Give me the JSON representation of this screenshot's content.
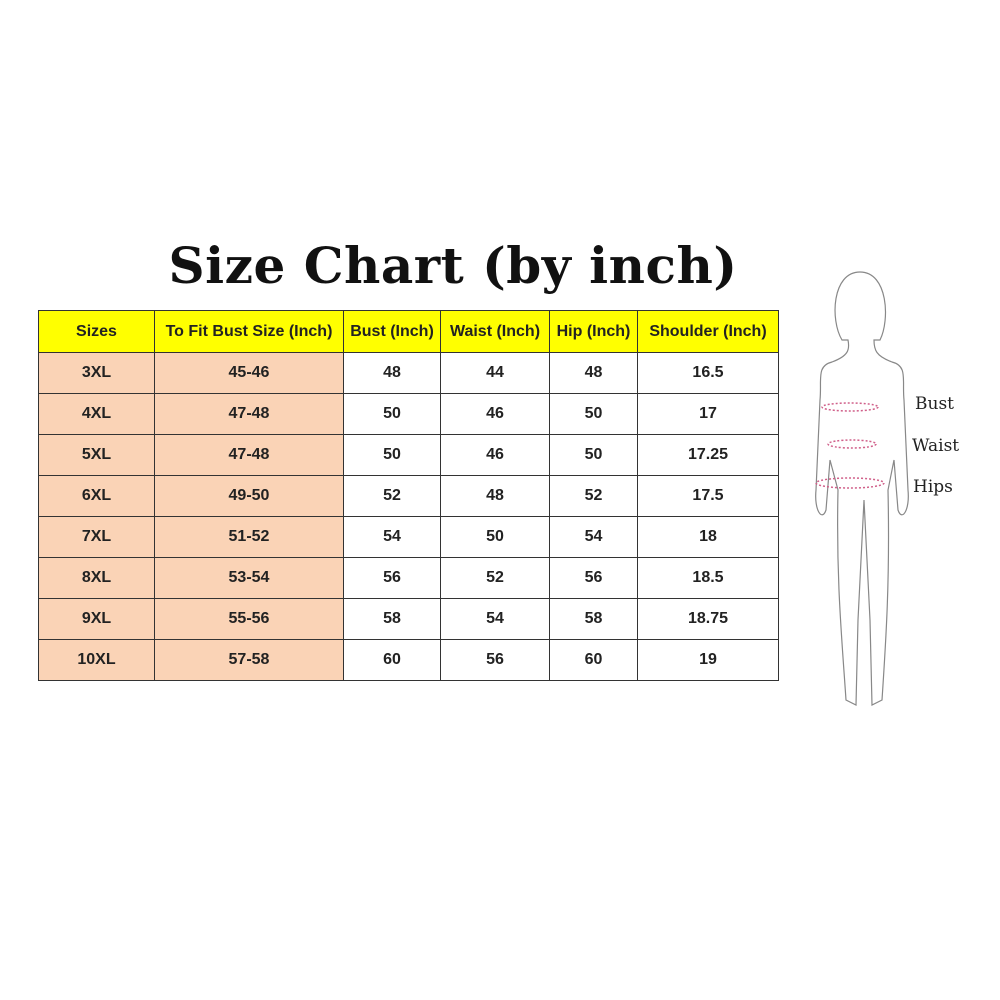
{
  "title": "Size Chart (by inch)",
  "table": {
    "headers": [
      "Sizes",
      "To Fit Bust Size (Inch)",
      "Bust (Inch)",
      "Waist (Inch)",
      "Hip (Inch)",
      "Shoulder (Inch)"
    ],
    "rows": [
      [
        "3XL",
        "45-46",
        "48",
        "44",
        "48",
        "16.5"
      ],
      [
        "4XL",
        "47-48",
        "50",
        "46",
        "50",
        "17"
      ],
      [
        "5XL",
        "47-48",
        "50",
        "46",
        "50",
        "17.25"
      ],
      [
        "6XL",
        "49-50",
        "52",
        "48",
        "52",
        "17.5"
      ],
      [
        "7XL",
        "51-52",
        "54",
        "50",
        "54",
        "18"
      ],
      [
        "8XL",
        "53-54",
        "56",
        "52",
        "56",
        "18.5"
      ],
      [
        "9XL",
        "55-56",
        "58",
        "54",
        "58",
        "18.75"
      ],
      [
        "10XL",
        "57-58",
        "60",
        "56",
        "60",
        "19"
      ]
    ]
  },
  "figure": {
    "labels": {
      "bust": "Bust",
      "waist": "Waist",
      "hips": "Hips"
    }
  },
  "colors": {
    "header": "#ffff00",
    "size_columns": "#fad3b6",
    "measure_lines": "#d0608a"
  }
}
